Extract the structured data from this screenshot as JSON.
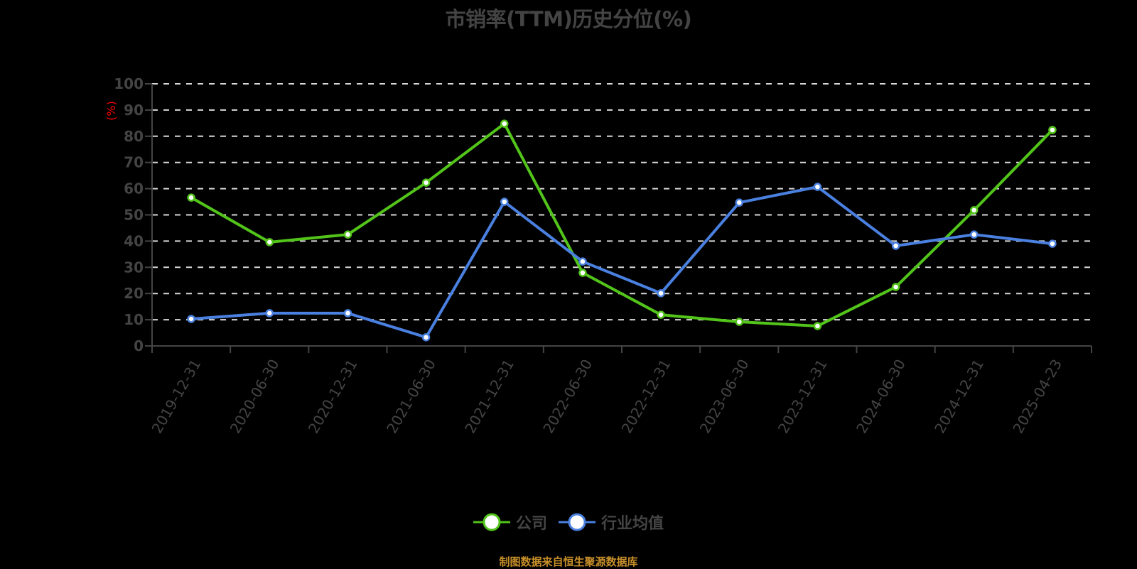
{
  "title": "市销率(TTM)历史分位(%)",
  "footer": "制图数据来自恒生聚源数据库",
  "legend": [
    {
      "name": "公司",
      "color": "#52c41a"
    },
    {
      "name": "行业均值",
      "color": "#4a80e0"
    }
  ],
  "chart_data": {
    "type": "line",
    "title": "市销率(TTM)历史分位(%)",
    "xlabel": "",
    "ylabel": "(%)",
    "ylim": [
      0,
      100
    ],
    "yticks": [
      0,
      10,
      20,
      30,
      40,
      50,
      60,
      70,
      80,
      90,
      100
    ],
    "grid": true,
    "legend_position": "bottom",
    "categories": [
      "2019-12-31",
      "2020-06-30",
      "2020-12-31",
      "2021-06-30",
      "2021-12-31",
      "2022-06-30",
      "2022-12-31",
      "2023-06-30",
      "2023-12-31",
      "2024-06-30",
      "2024-12-31",
      "2025-04-23"
    ],
    "series": [
      {
        "name": "公司",
        "color": "#52c41a",
        "values": [
          56.6,
          39.6,
          42.5,
          62.3,
          84.8,
          27.9,
          11.9,
          9.2,
          7.6,
          22.5,
          51.8,
          82.4
        ]
      },
      {
        "name": "行业均值",
        "color": "#4a80e0",
        "values": [
          10.3,
          12.5,
          12.5,
          3.3,
          55.0,
          32.2,
          20.1,
          54.7,
          60.7,
          38.2,
          42.5,
          39.0
        ]
      }
    ]
  }
}
